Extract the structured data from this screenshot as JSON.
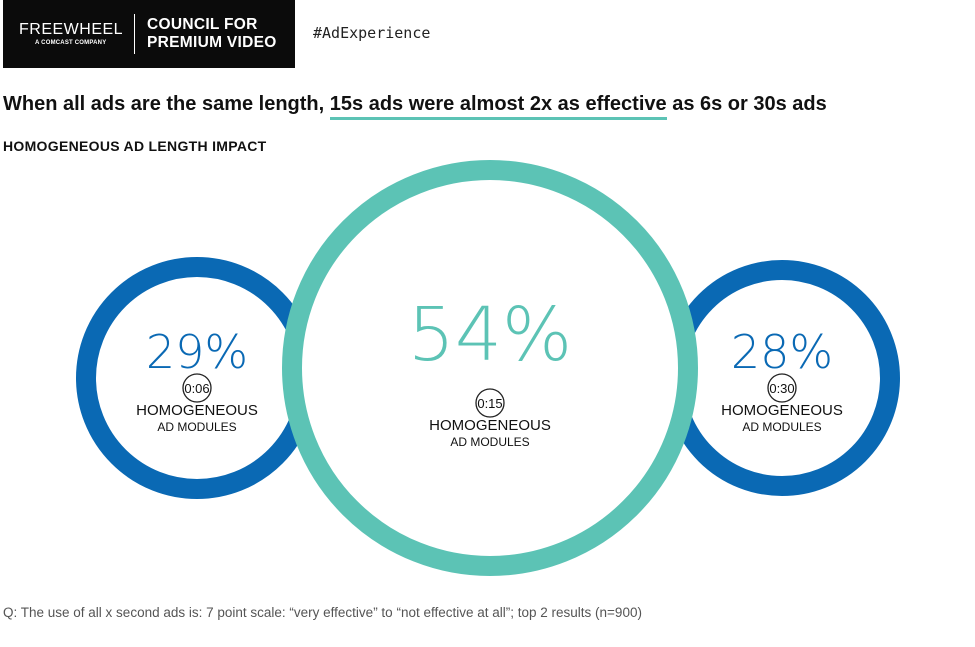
{
  "brand": {
    "logo_text": "FREEWHEEL",
    "logo_sub": "A COMCAST COMPANY",
    "council_line1": "COUNCIL FOR",
    "council_line2": "PREMIUM VIDEO"
  },
  "hashtag": "#AdExperience",
  "headline": {
    "part1": "When all ads are the same length, ",
    "highlight": "15s ads were almost 2x as effective",
    "part2": " as 6s or 30s ads"
  },
  "footnote": "Q: The use of all x second ads is: 7 point scale: “very effective” to “not effective at all”; top 2 results (n=900)",
  "chart_data": {
    "type": "bubble",
    "title": "HOMOGENEOUS AD LENGTH IMPACT",
    "categories": [
      "0:06",
      "0:15",
      "0:30"
    ],
    "values": [
      29,
      54,
      28
    ],
    "value_labels": [
      "29%",
      "54%",
      "28%"
    ],
    "label_line1": "HOMOGENEOUS",
    "label_line2": "AD MODULES",
    "colors": [
      "#0a69b4",
      "#5cc3b5",
      "#0a69b4"
    ]
  }
}
